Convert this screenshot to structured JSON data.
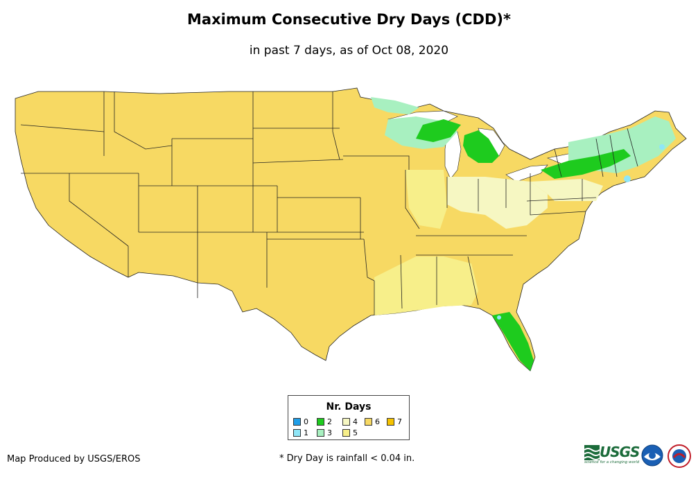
{
  "title": "Maximum Consecutive Dry Days (CDD)*",
  "subtitle": "in past 7 days, as of Oct 08, 2020",
  "legend": {
    "title": "Nr. Days",
    "items": [
      {
        "label": "0",
        "color": "#1f9ee8"
      },
      {
        "label": "1",
        "color": "#8fe6f7"
      },
      {
        "label": "2",
        "color": "#1ecb1e"
      },
      {
        "label": "3",
        "color": "#a8f0c0"
      },
      {
        "label": "4",
        "color": "#f6f7c2"
      },
      {
        "label": "5",
        "color": "#f7ef8a"
      },
      {
        "label": "6",
        "color": "#f7d963"
      },
      {
        "label": "7",
        "color": "#f5c200"
      }
    ]
  },
  "credit": "Map Produced by USGS/EROS",
  "footnote": "* Dry Day is rainfall < 0.04 in.",
  "logos": {
    "usgs_word": "USGS",
    "usgs_tagline": "science for a changing world",
    "noaa": "noaa-logo",
    "nws": "nws-logo"
  },
  "map": {
    "dominant_value": "6",
    "colors": {
      "six": "#f7d963",
      "five": "#f7ef8a",
      "four": "#f6f7c2",
      "three": "#a8f0c0",
      "two": "#1ecb1e",
      "one": "#8fe6f7",
      "water": "#ffffff",
      "border": "#222222"
    }
  }
}
